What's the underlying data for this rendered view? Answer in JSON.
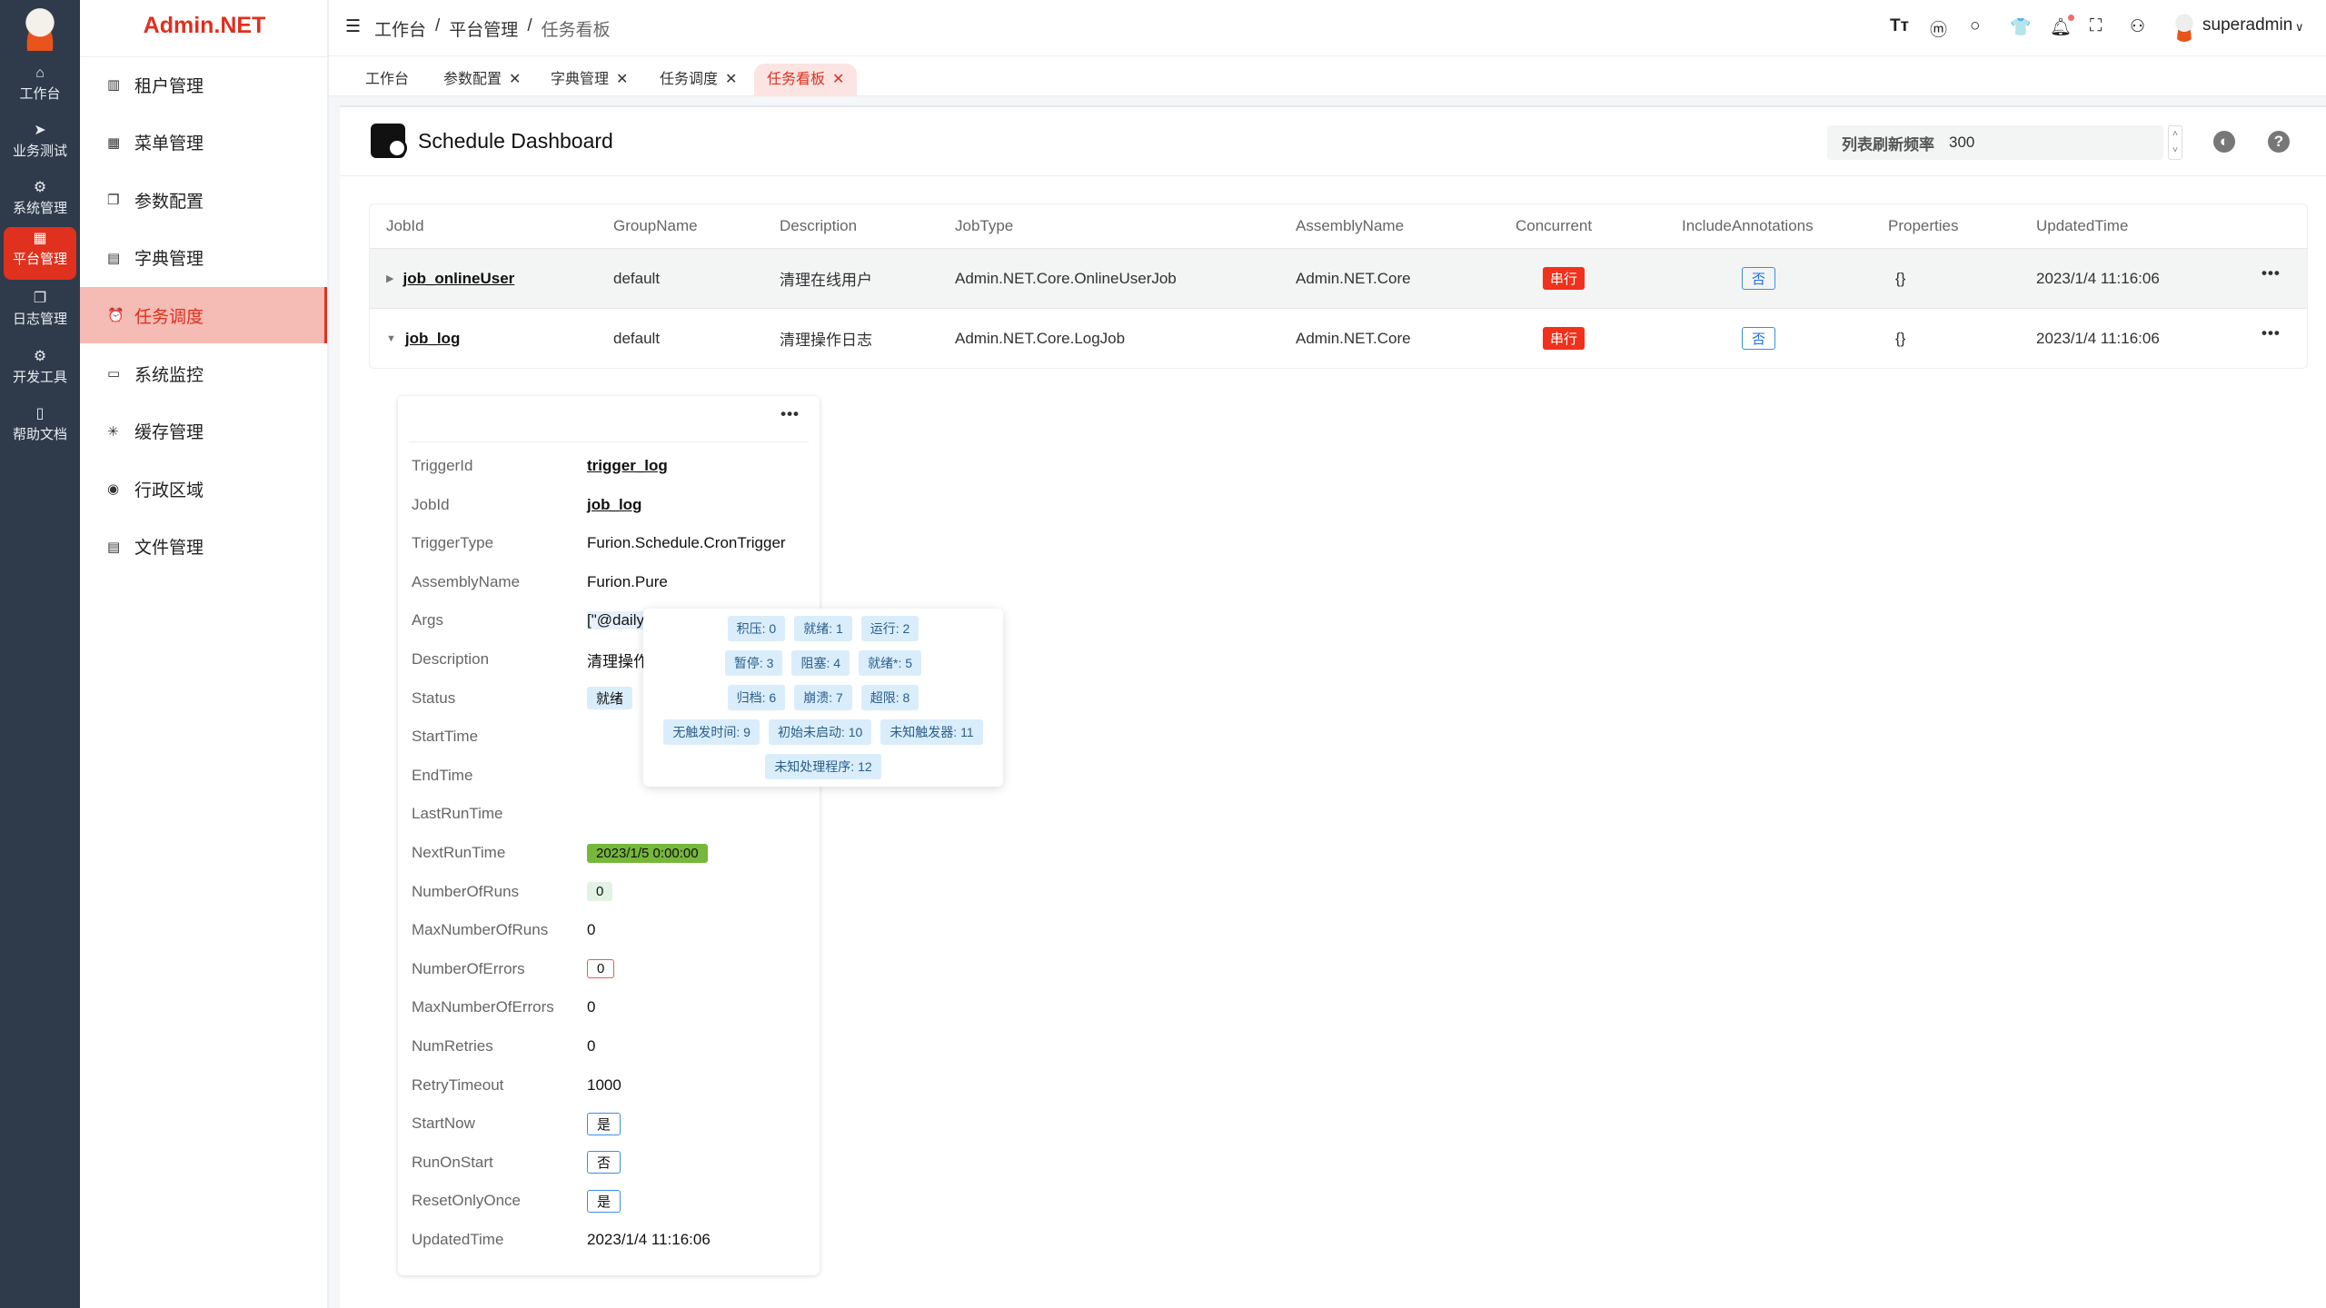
{
  "rail": {
    "items": [
      {
        "label": "工作台",
        "icon": "home-icon",
        "glyph": "⌂"
      },
      {
        "label": "业务测试",
        "icon": "send-icon",
        "glyph": "➤"
      },
      {
        "label": "系统管理",
        "icon": "gear-icon",
        "glyph": "⚙"
      },
      {
        "label": "平台管理",
        "icon": "grid-icon",
        "glyph": "▦"
      },
      {
        "label": "日志管理",
        "icon": "copy-icon",
        "glyph": "❐"
      },
      {
        "label": "开发工具",
        "icon": "chip-icon",
        "glyph": "⚙"
      },
      {
        "label": "帮助文档",
        "icon": "book-icon",
        "glyph": "▯"
      }
    ],
    "active": 3
  },
  "brand": "Admin.NET",
  "sidebar": {
    "items": [
      {
        "label": "租户管理",
        "icon": "building-icon",
        "glyph": "▥"
      },
      {
        "label": "菜单管理",
        "icon": "grid-icon",
        "glyph": "▦"
      },
      {
        "label": "参数配置",
        "icon": "copy-icon",
        "glyph": "❐"
      },
      {
        "label": "字典管理",
        "icon": "book-icon",
        "glyph": "▤"
      },
      {
        "label": "任务调度",
        "icon": "alarm-clock-icon",
        "glyph": "⏰"
      },
      {
        "label": "系统监控",
        "icon": "monitor-icon",
        "glyph": "▭"
      },
      {
        "label": "缓存管理",
        "icon": "loading-icon",
        "glyph": "✳"
      },
      {
        "label": "行政区域",
        "icon": "location-icon",
        "glyph": "◉"
      },
      {
        "label": "文件管理",
        "icon": "document-icon",
        "glyph": "▤"
      }
    ],
    "active": 4
  },
  "header": {
    "breadcrumb": [
      "工作台",
      "平台管理",
      "任务看板"
    ],
    "username": "superadmin",
    "separator": "/"
  },
  "tabs": [
    {
      "label": "工作台",
      "closable": false
    },
    {
      "label": "参数配置",
      "closable": true
    },
    {
      "label": "字典管理",
      "closable": true
    },
    {
      "label": "任务调度",
      "closable": true
    },
    {
      "label": "任务看板",
      "closable": true,
      "active": true
    }
  ],
  "dashboard": {
    "title": "Schedule Dashboard",
    "refresh_label": "列表刷新频率",
    "refresh_value": "300"
  },
  "table": {
    "columns": [
      "JobId",
      "GroupName",
      "Description",
      "JobType",
      "AssemblyName",
      "Concurrent",
      "IncludeAnnotations",
      "Properties",
      "UpdatedTime"
    ],
    "rows": [
      {
        "jobId": "job_onlineUser",
        "group": "default",
        "desc": "清理在线用户",
        "jobType": "Admin.NET.Core.OnlineUserJob",
        "assembly": "Admin.NET.Core",
        "concurrent": "串行",
        "annotations": "否",
        "properties": "{}",
        "updated": "2023/1/4 11:16:06",
        "expanded": false
      },
      {
        "jobId": "job_log",
        "group": "default",
        "desc": "清理操作日志",
        "jobType": "Admin.NET.Core.LogJob",
        "assembly": "Admin.NET.Core",
        "concurrent": "串行",
        "annotations": "否",
        "properties": "{}",
        "updated": "2023/1/4 11:16:06",
        "expanded": true
      }
    ]
  },
  "trigger": [
    {
      "k": "TriggerId",
      "v": "trigger_log",
      "style": "link"
    },
    {
      "k": "JobId",
      "v": "job_log",
      "style": "link"
    },
    {
      "k": "TriggerType",
      "v": "Furion.Schedule.CronTrigger"
    },
    {
      "k": "AssemblyName",
      "v": "Furion.Pure"
    },
    {
      "k": "Args",
      "v": "[\"@daily"
    },
    {
      "k": "Description",
      "v": "清理操作"
    },
    {
      "k": "Status",
      "v": "就绪",
      "style": "tag-light"
    },
    {
      "k": "StartTime",
      "v": ""
    },
    {
      "k": "EndTime",
      "v": ""
    },
    {
      "k": "LastRunTime",
      "v": ""
    },
    {
      "k": "NextRunTime",
      "v": "2023/1/5 0:00:00",
      "style": "tag-green"
    },
    {
      "k": "NumberOfRuns",
      "v": "0",
      "style": "tag-lgreen"
    },
    {
      "k": "MaxNumberOfRuns",
      "v": "0"
    },
    {
      "k": "NumberOfErrors",
      "v": "0",
      "style": "tag-rout"
    },
    {
      "k": "MaxNumberOfErrors",
      "v": "0"
    },
    {
      "k": "NumRetries",
      "v": "0"
    },
    {
      "k": "RetryTimeout",
      "v": "1000"
    },
    {
      "k": "StartNow",
      "v": "是",
      "style": "tag-blue"
    },
    {
      "k": "RunOnStart",
      "v": "否",
      "style": "tag-blue"
    },
    {
      "k": "ResetOnlyOnce",
      "v": "是",
      "style": "tag-blue"
    },
    {
      "k": "UpdatedTime",
      "v": "2023/1/4 11:16:06"
    }
  ],
  "status_popover": [
    [
      "积压: 0",
      "就绪: 1",
      "运行: 2"
    ],
    [
      "暂停: 3",
      "阻塞: 4",
      "就绪*: 5"
    ],
    [
      "归档: 6",
      "崩溃: 7",
      "超限: 8"
    ],
    [
      "无触发时间: 9",
      "初始未启动: 10",
      "未知触发器: 11"
    ],
    [
      "未知处理程序: 12"
    ]
  ],
  "colors": {
    "accent": "#e0301e",
    "rail": "#2f3b4b",
    "active_menu_bg": "#f4bcb5"
  }
}
